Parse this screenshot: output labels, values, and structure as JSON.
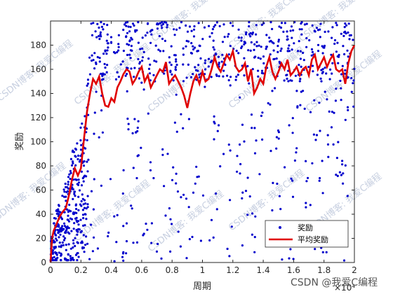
{
  "chart_data": {
    "type": "scatter",
    "xlabel": "周期",
    "ylabel": "奖励",
    "x_exponent": "×10⁴",
    "xlim": [
      0,
      2
    ],
    "ylim": [
      0,
      200
    ],
    "xticks": [
      "0",
      "0.2",
      "0.4",
      "0.6",
      "0.8",
      "1",
      "1.2",
      "1.4",
      "1.6",
      "1.8",
      "2"
    ],
    "yticks": [
      "0",
      "20",
      "40",
      "60",
      "80",
      "100",
      "120",
      "140",
      "160",
      "180"
    ],
    "legend_position": "bottom-right",
    "series": [
      {
        "name": "奖励",
        "style": "scatter",
        "color": "#0000cc",
        "description_counts": "dense cloud of per-episode rewards, spread across 0–200, denser near 0 early on",
        "points": []
      },
      {
        "name": "平均奖励",
        "style": "line",
        "color": "#e00000",
        "x": [
          0,
          0.01,
          0.02,
          0.04,
          0.06,
          0.08,
          0.1,
          0.12,
          0.14,
          0.16,
          0.18,
          0.2,
          0.22,
          0.24,
          0.26,
          0.28,
          0.3,
          0.32,
          0.34,
          0.36,
          0.38,
          0.4,
          0.42,
          0.44,
          0.46,
          0.48,
          0.5,
          0.52,
          0.54,
          0.56,
          0.58,
          0.6,
          0.62,
          0.64,
          0.66,
          0.68,
          0.7,
          0.72,
          0.74,
          0.76,
          0.78,
          0.8,
          0.82,
          0.84,
          0.86,
          0.88,
          0.9,
          0.92,
          0.94,
          0.96,
          0.98,
          1.0,
          1.02,
          1.04,
          1.06,
          1.08,
          1.1,
          1.12,
          1.14,
          1.16,
          1.18,
          1.2,
          1.22,
          1.24,
          1.26,
          1.28,
          1.3,
          1.32,
          1.34,
          1.36,
          1.38,
          1.4,
          1.42,
          1.44,
          1.46,
          1.48,
          1.5,
          1.52,
          1.54,
          1.56,
          1.58,
          1.6,
          1.62,
          1.64,
          1.66,
          1.68,
          1.7,
          1.72,
          1.74,
          1.76,
          1.78,
          1.8,
          1.82,
          1.84,
          1.86,
          1.88,
          1.9,
          1.92,
          1.94,
          1.96,
          1.98,
          2.0
        ],
        "y": [
          0,
          20,
          26,
          32,
          38,
          42,
          45,
          55,
          68,
          78,
          72,
          78,
          102,
          125,
          140,
          152,
          148,
          154,
          140,
          130,
          129,
          136,
          133,
          145,
          150,
          156,
          160,
          158,
          148,
          152,
          158,
          162,
          150,
          155,
          145,
          150,
          155,
          160,
          158,
          166,
          148,
          152,
          155,
          150,
          145,
          138,
          128,
          140,
          150,
          155,
          148,
          158,
          150,
          152,
          160,
          170,
          162,
          158,
          165,
          172,
          168,
          175,
          162,
          158,
          160,
          165,
          150,
          160,
          140,
          145,
          152,
          148,
          162,
          170,
          158,
          152,
          158,
          165,
          160,
          168,
          155,
          158,
          162,
          155,
          160,
          162,
          155,
          168,
          172,
          160,
          165,
          170,
          162,
          168,
          172,
          160,
          158,
          160,
          148,
          165,
          175,
          180
        ]
      }
    ]
  },
  "watermark": "CSDN博客: 我爱C编程",
  "credit": "CSDN @我爱C编程"
}
